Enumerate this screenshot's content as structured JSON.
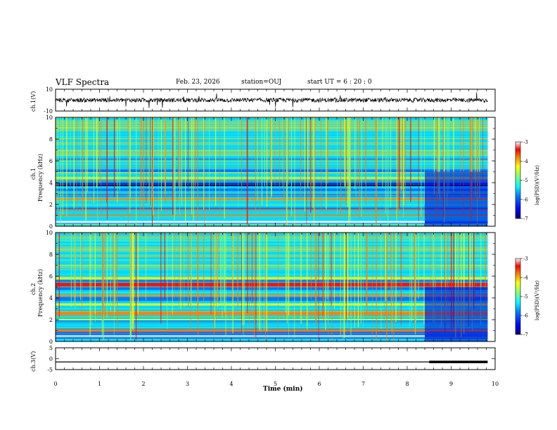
{
  "header": {
    "title": "VLF Spectra",
    "date": "Feb. 23, 2026",
    "station": "station=OUJ",
    "start": "start  UT =   6  : 20 : 0"
  },
  "chart_data": [
    {
      "type": "line",
      "panel": "ch1-waveform",
      "ylabel": "ch.1(V)",
      "ylim": [
        -10,
        10
      ],
      "ytick_labels": [
        "10",
        "-10"
      ],
      "x_range": [
        0,
        9.83
      ],
      "signal": "broadband noise, amplitude about ±2 V with occasional spikes",
      "color": "#000000"
    },
    {
      "type": "heatmap",
      "panel": "ch1-spectrogram",
      "ylabel_top": "ch.1",
      "ylabel": "Frequency (kHz)",
      "ylim": [
        0,
        10
      ],
      "ytick_labels": [
        "0",
        "2",
        "4",
        "6",
        "8",
        "10"
      ],
      "x_range": [
        0,
        9.83
      ],
      "description": "log power spectral density, strong broadband sferics, bands near 0.5, 1.5, 2.5 and 4.5 kHz, level drop after 8.4 min",
      "colorbar": {
        "label": "log(PSD)(V²/Hz)",
        "range": [
          -7,
          -3
        ],
        "tick_labels": [
          "-3",
          "-4",
          "-5",
          "-6",
          "-7"
        ],
        "colors": [
          "#000080",
          "#0000ff",
          "#0080ff",
          "#00ffff",
          "#80ff80",
          "#ffff00",
          "#ff8000",
          "#ff0000",
          "#ffffff"
        ]
      }
    },
    {
      "type": "heatmap",
      "panel": "ch2-spectrogram",
      "ylabel_top": "ch.2",
      "ylabel": "Frequency (kHz)",
      "ylim": [
        0,
        10
      ],
      "ytick_labels": [
        "0",
        "2",
        "4",
        "6",
        "8",
        "10"
      ],
      "x_range": [
        0,
        9.83
      ],
      "description": "log power spectral density, strong bands near 1, 2.5, 4.2 and 5.2 kHz, level drop after 8.4 min",
      "colorbar": {
        "label": "log(PSD)(V²/Hz)",
        "range": [
          -7,
          -3
        ],
        "tick_labels": [
          "-3",
          "-4",
          "-5",
          "-6",
          "-7"
        ],
        "colors": [
          "#000080",
          "#0000ff",
          "#0080ff",
          "#00ffff",
          "#80ff80",
          "#ffff00",
          "#ff8000",
          "#ff0000",
          "#ffffff"
        ]
      }
    },
    {
      "type": "line",
      "panel": "ch3-waveform",
      "ylabel": "ch.3(V)",
      "ylim": [
        -5,
        5
      ],
      "ytick_labels": [
        "5",
        "0",
        "-5"
      ],
      "x_range": [
        0,
        9.83
      ],
      "level": -1.5,
      "thick_from": 8.5,
      "color": "#000000"
    }
  ],
  "xaxis": {
    "label": "Time (min)",
    "xlim": [
      0,
      10
    ],
    "tick_labels": [
      "0",
      "1",
      "2",
      "3",
      "4",
      "5",
      "6",
      "7",
      "8",
      "9",
      "10"
    ]
  }
}
